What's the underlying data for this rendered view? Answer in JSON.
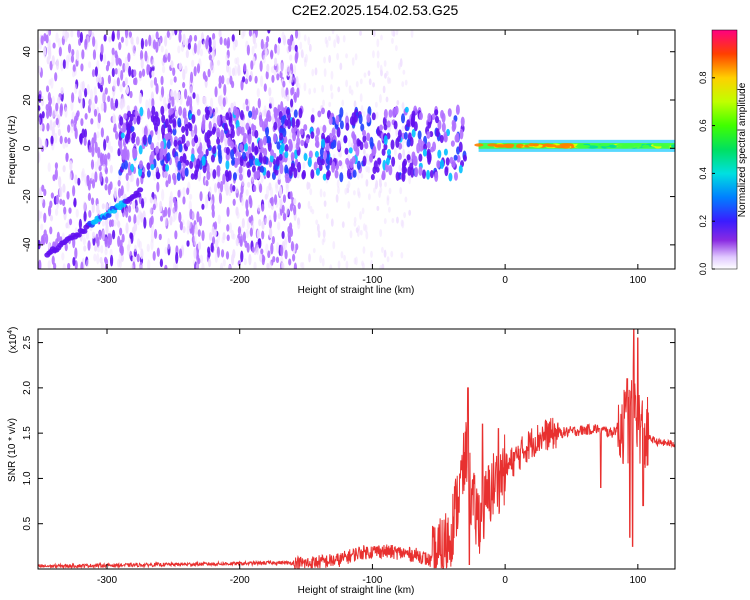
{
  "title": "C2E2.2025.154.02.53.G25",
  "chart_data": [
    {
      "type": "heatmap",
      "xlabel": "Height of straight line (km)",
      "ylabel": "Frequency (Hz)",
      "xlim": [
        -352,
        128
      ],
      "ylim": [
        -50,
        49
      ],
      "x_ticks": [
        -300,
        -200,
        -100,
        0,
        100
      ],
      "y_ticks": [
        -40,
        -20,
        0,
        20,
        40
      ],
      "colorbar": {
        "label": "Normalized spectral amplitude",
        "range": [
          0,
          1
        ],
        "ticks": [
          0.0,
          0.2,
          0.4,
          0.6,
          0.8
        ]
      },
      "features": [
        {
          "name": "scattered noise",
          "x_range": [
            -352,
            -155
          ],
          "freq_range": [
            -50,
            49
          ],
          "amplitude": 0.05
        },
        {
          "name": "sparse noise",
          "x_range": [
            -155,
            -70
          ],
          "freq_range": [
            -50,
            49
          ],
          "amplitude": 0.02
        },
        {
          "name": "rising track",
          "x_start": -345,
          "y_start": -44,
          "x_end": -275,
          "y_end": -18,
          "amplitude": 0.25
        },
        {
          "name": "broad band",
          "x_range": [
            -290,
            -30
          ],
          "freq_range": [
            -12,
            16
          ],
          "amplitude": 0.15
        },
        {
          "name": "steady line",
          "x_range": [
            -20,
            128
          ],
          "center_hz": 1,
          "amplitude": 0.9
        }
      ]
    },
    {
      "type": "line",
      "xlabel": "Height of straight line (km)",
      "ylabel": "SNR (10 * v/v)",
      "yscale_label": "(x10",
      "yscale_exp": "4",
      "xlim": [
        -352,
        128
      ],
      "ylim": [
        0,
        2.65
      ],
      "x_ticks": [
        -300,
        -200,
        -100,
        0,
        100
      ],
      "y_ticks": [
        0.5,
        1.0,
        1.5,
        2.0,
        2.5
      ],
      "series": [
        {
          "color": "#e8302f",
          "points": [
            [
              -352,
              0.03
            ],
            [
              -300,
              0.04
            ],
            [
              -250,
              0.05
            ],
            [
              -200,
              0.06
            ],
            [
              -170,
              0.07
            ],
            [
              -150,
              0.06
            ],
            [
              -125,
              0.1
            ],
            [
              -110,
              0.18
            ],
            [
              -95,
              0.2
            ],
            [
              -80,
              0.18
            ],
            [
              -65,
              0.15
            ],
            [
              -55,
              0.08
            ],
            [
              -48,
              0.18
            ],
            [
              -42,
              0.35
            ],
            [
              -38,
              0.6
            ],
            [
              -34,
              0.9
            ],
            [
              -30,
              1.2
            ],
            [
              -28,
              1.4
            ],
            [
              -26,
              0.8
            ],
            [
              -22,
              0.6
            ],
            [
              -18,
              0.55
            ],
            [
              -14,
              0.75
            ],
            [
              -10,
              0.9
            ],
            [
              -5,
              1.0
            ],
            [
              0,
              1.1
            ],
            [
              10,
              1.25
            ],
            [
              20,
              1.4
            ],
            [
              30,
              1.48
            ],
            [
              50,
              1.52
            ],
            [
              70,
              1.55
            ],
            [
              80,
              1.5
            ],
            [
              88,
              1.6
            ],
            [
              92,
              1.55
            ],
            [
              98,
              1.85
            ],
            [
              103,
              1.5
            ],
            [
              108,
              1.45
            ],
            [
              115,
              1.4
            ],
            [
              128,
              1.38
            ]
          ],
          "spikes": [
            {
              "x": -28,
              "peak": 2.0
            },
            {
              "x": -27,
              "min": 0.05
            },
            {
              "x": -17,
              "peak": 1.6
            },
            {
              "x": -5,
              "peak": 1.55
            },
            {
              "x": 71,
              "peak": 1.55
            },
            {
              "x": 72,
              "min": 0.9
            },
            {
              "x": 92,
              "peak": 2.1
            },
            {
              "x": 97,
              "peak": 2.65
            },
            {
              "x": 94,
              "min": 0.35
            },
            {
              "x": 96,
              "min": 0.25
            },
            {
              "x": 100,
              "peak": 2.55
            },
            {
              "x": 104,
              "min": 0.7
            }
          ],
          "noise": [
            {
              "x_range": [
                -352,
                -160
              ],
              "amplitude": 0.02
            },
            {
              "x_range": [
                -160,
                -55
              ],
              "amplitude": 0.08
            },
            {
              "x_range": [
                -55,
                0
              ],
              "amplitude": 0.4
            },
            {
              "x_range": [
                0,
                40
              ],
              "amplitude": 0.18
            },
            {
              "x_range": [
                40,
                85
              ],
              "amplitude": 0.06
            },
            {
              "x_range": [
                85,
                108
              ],
              "amplitude": 0.45
            },
            {
              "x_range": [
                108,
                128
              ],
              "amplitude": 0.04
            }
          ]
        }
      ]
    }
  ]
}
